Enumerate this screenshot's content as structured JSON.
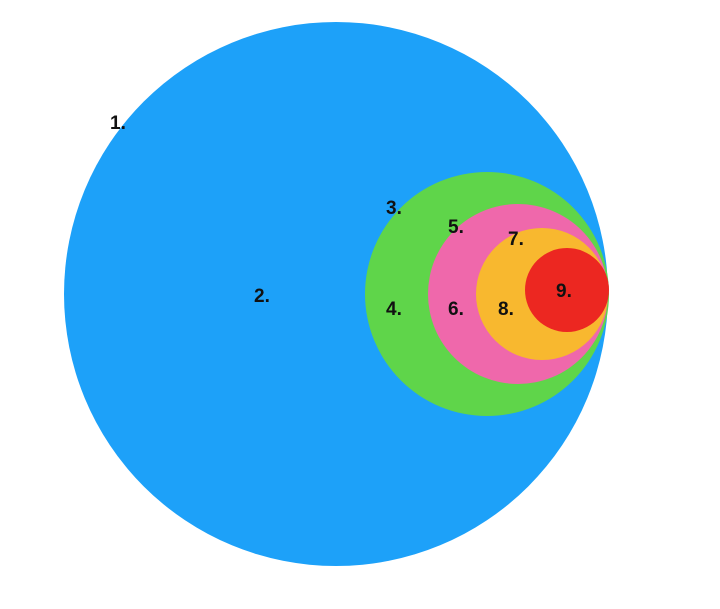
{
  "colors": {
    "background": "#ffffff",
    "circle_1": "#1da1f9",
    "circle_2": "#5fd54a",
    "circle_3": "#ef68ab",
    "circle_4": "#f8b82f",
    "circle_5": "#ec2721"
  },
  "labels": {
    "l1": "1.",
    "l2": "2.",
    "l3": "3.",
    "l4": "4.",
    "l5": "5.",
    "l6": "6.",
    "l7": "7.",
    "l8": "8.",
    "l9": "9."
  }
}
